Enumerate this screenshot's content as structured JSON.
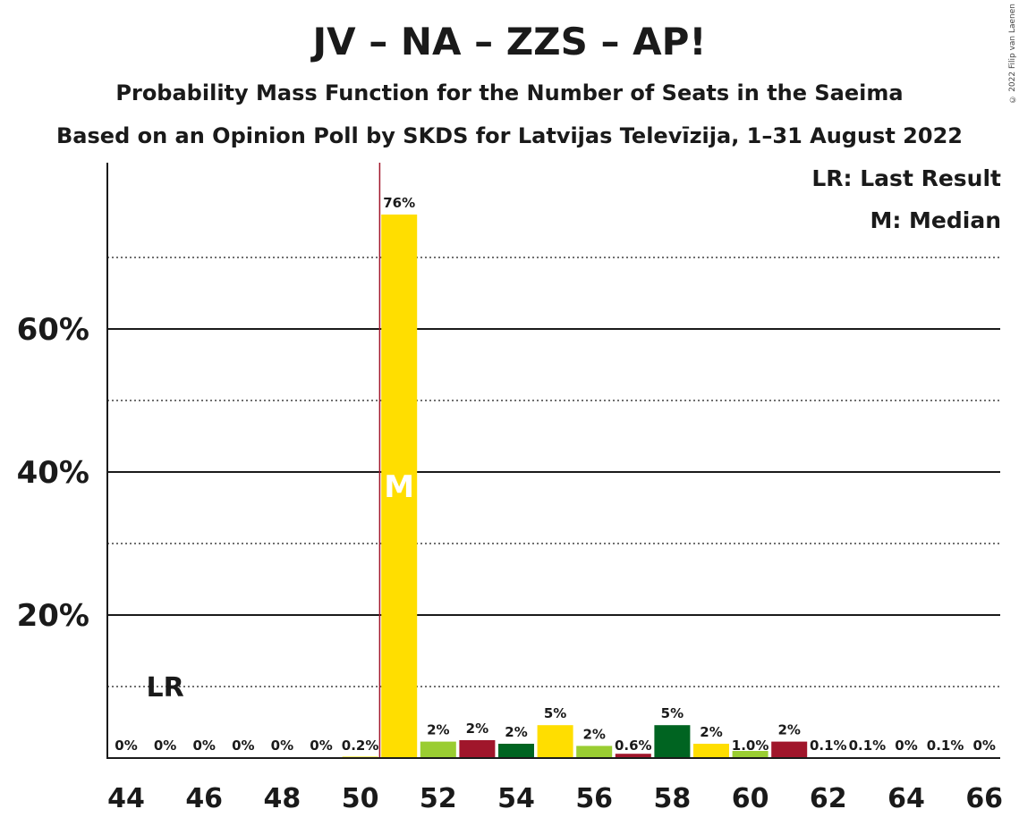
{
  "chart_data": {
    "type": "bar",
    "title": "JV – NA – ZZS – AP!",
    "subtitle": "Probability Mass Function for the Number of Seats in the Saeima",
    "subtitle2": "Based on an Opinion Poll by SKDS for Latvijas Televīzija, 1–31 August 2022",
    "copyright": "© 2022 Filip van Laenen",
    "legend": [
      "LR: Last Result",
      "M: Median"
    ],
    "legend_position": "top-right",
    "xlabel": "",
    "ylabel": "",
    "x": [
      44,
      45,
      46,
      47,
      48,
      49,
      50,
      51,
      52,
      53,
      54,
      55,
      56,
      57,
      58,
      59,
      60,
      61,
      62,
      63,
      64,
      65,
      66
    ],
    "values": [
      0,
      0,
      0,
      0,
      0,
      0,
      0.2,
      76,
      2.3,
      2.5,
      2,
      4.6,
      1.7,
      0.6,
      4.6,
      2,
      1,
      2.3,
      0.1,
      0.1,
      0,
      0.1,
      0
    ],
    "labels": [
      "0%",
      "0%",
      "0%",
      "0%",
      "0%",
      "0%",
      "0.2%",
      "76%",
      "2%",
      "2%",
      "2%",
      "5%",
      "2%",
      "0.6%",
      "5%",
      "2%",
      "1.0%",
      "2%",
      "0.1%",
      "0.1%",
      "0%",
      "0.1%",
      "0%"
    ],
    "colors": [
      "#FFDE00",
      "#FFDE00",
      "#FFDE00",
      "#FFDE00",
      "#FFDE00",
      "#FFDE00",
      "#FFDE00",
      "#FFDE00",
      "#9ACD32",
      "#A0162B",
      "#006421",
      "#FFDE00",
      "#9ACD32",
      "#A0162B",
      "#006421",
      "#FFDE00",
      "#9ACD32",
      "#A0162B",
      "#006421",
      "#FFDE00",
      "#9ACD32",
      "#A0162B",
      "#006421"
    ],
    "xticks": [
      44,
      46,
      48,
      50,
      52,
      54,
      56,
      58,
      60,
      62,
      64,
      66
    ],
    "yticks": [
      20,
      40,
      60
    ],
    "ytick_labels": [
      "20%",
      "40%",
      "60%"
    ],
    "minor_gridlines": [
      10,
      30,
      50,
      70
    ],
    "ylim": [
      0,
      83
    ],
    "last_result_seat": 45,
    "last_result_label": "LR",
    "median_seat": 51,
    "median_label": "M",
    "threshold_seat": 50.5,
    "threshold_color": "#A0162B"
  }
}
